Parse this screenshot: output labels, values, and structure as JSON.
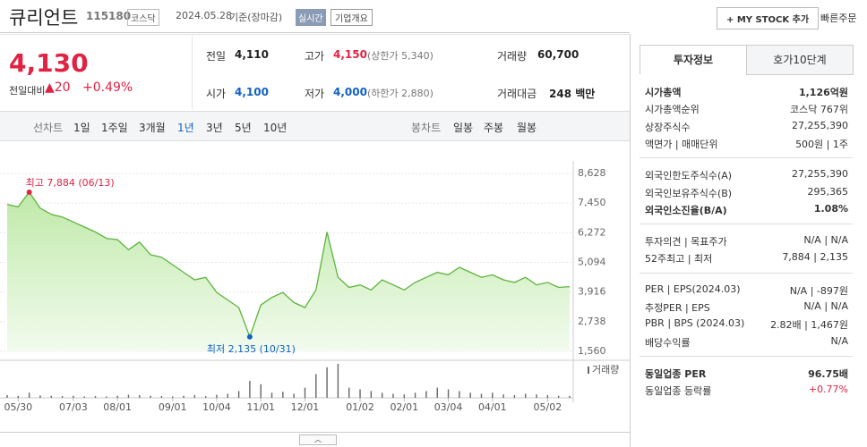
{
  "header": {
    "name": "큐리언트",
    "code": "115180",
    "market": "코스닥",
    "date": "2024.05.28",
    "basis": "기준(장마감)",
    "realtime": "실시간",
    "overview": "기업개요",
    "my_stock": "+ MY STOCK 추가",
    "quick_order": "빠른주문"
  },
  "price": {
    "current": "4,130",
    "change_label": "전일대비",
    "change": "▲20",
    "percent": "+0.49%",
    "color": "#e12343"
  },
  "stats": [
    {
      "label": "전일",
      "value": "4,110",
      "color": "#222222"
    },
    {
      "label": "고가",
      "value": "4,150",
      "extra": "(상한가 5,340)",
      "color": "#e12343"
    },
    {
      "label": "거래량",
      "value": "60,700",
      "color": "#222222"
    },
    {
      "label": "시가",
      "value": "4,100",
      "color": "#1261c4"
    },
    {
      "label": "저가",
      "value": "4,000",
      "extra": "(하한가 2,880)",
      "color": "#1261c4"
    },
    {
      "label": "거래대금",
      "value": "248 백만",
      "color": "#222222"
    }
  ],
  "tabs": {
    "line_chart": "선차트",
    "periods": [
      "1일",
      "1주일",
      "3개월",
      "1년",
      "3년",
      "5년",
      "10년"
    ],
    "candle_chart": "봉차트",
    "candles": [
      "일봉",
      "주봉",
      "월봉"
    ]
  },
  "panel": {
    "tabs": [
      "투자정보",
      "호가10단계"
    ],
    "sections": [
      [
        {
          "label": "시가총액",
          "value": "1,126억원",
          "bold": true
        },
        {
          "label": "시가총액순위",
          "value": "코스닥 767위"
        },
        {
          "label": "상장주식수",
          "value": "27,255,390"
        },
        {
          "label": "액면가 | 매매단위",
          "value": "500원 | 1주"
        }
      ],
      [
        {
          "label": "외국인한도주식수(A)",
          "value": "27,255,390"
        },
        {
          "label": "외국인보유주식수(B)",
          "value": "295,365"
        },
        {
          "label": "외국인소진율(B/A)",
          "value": "1.08%",
          "bold": true
        }
      ],
      [
        {
          "label": "투자의견 | 목표주가",
          "value": "N/A | N/A"
        },
        {
          "label": "52주최고 | 최저",
          "value": "7,884 | 2,135"
        }
      ],
      [
        {
          "label": "PER | EPS(2024.03)",
          "value": "N/A | -897원"
        },
        {
          "label": "추정PER | EPS",
          "value": "N/A | N/A"
        },
        {
          "label": "PBR | BPS (2024.03)",
          "value": "2.82배 | 1,467원"
        },
        {
          "label": "배당수익률",
          "value": "N/A"
        }
      ],
      [
        {
          "label": "동일업종 PER",
          "value": "96.75배",
          "bold": true
        },
        {
          "label": "동일업종 등락률",
          "value": "+0.77%",
          "color": "#e12343"
        }
      ]
    ]
  },
  "chart_data": {
    "type": "area",
    "categories": [
      null,
      "05/30",
      null,
      null,
      null,
      null,
      "07/03",
      null,
      null,
      null,
      "08/01",
      null,
      null,
      null,
      null,
      "09/01",
      null,
      null,
      null,
      "10/04",
      null,
      null,
      null,
      "11/01",
      null,
      null,
      null,
      "12/01",
      null,
      null,
      null,
      null,
      "01/02",
      null,
      null,
      null,
      "02/01",
      null,
      null,
      null,
      "03/04",
      null,
      null,
      null,
      "04/01",
      null,
      null,
      null,
      null,
      "05/02",
      null,
      null
    ],
    "values": [
      7400,
      7300,
      7884,
      7250,
      7000,
      6900,
      6700,
      6500,
      6300,
      6050,
      6000,
      5600,
      5900,
      5400,
      5300,
      5000,
      4700,
      4400,
      4500,
      3900,
      3600,
      3300,
      2135,
      3400,
      3700,
      3900,
      3500,
      3300,
      4000,
      6300,
      4500,
      4100,
      4200,
      4000,
      4400,
      4200,
      4000,
      4300,
      4500,
      4700,
      4600,
      4900,
      4700,
      4500,
      4600,
      4400,
      4300,
      4500,
      4200,
      4300,
      4100,
      4130
    ],
    "color": "#5cb43c",
    "ylim": [
      1560,
      8628
    ],
    "yticks": [
      {
        "value": 1560,
        "label": "1,560"
      },
      {
        "value": 2738,
        "label": "2,738"
      },
      {
        "value": 3916,
        "label": "3,916"
      },
      {
        "value": 5094,
        "label": "5,094"
      },
      {
        "value": 6272,
        "label": "6,272"
      },
      {
        "value": 7450,
        "label": "7,450"
      },
      {
        "value": 8628,
        "label": "8,628"
      }
    ],
    "high_label": "최고 7,884 (06/13)",
    "low_label": "최저 2,135 (10/31)",
    "volume": {
      "label": "거래량",
      "color": "#666666",
      "values": [
        80,
        60,
        150,
        70,
        60,
        50,
        60,
        40,
        50,
        40,
        60,
        90,
        80,
        60,
        50,
        40,
        60,
        80,
        50,
        90,
        120,
        200,
        500,
        400,
        150,
        180,
        120,
        300,
        700,
        900,
        1000,
        300,
        250,
        200,
        150,
        120,
        100,
        150,
        200,
        300,
        250,
        200,
        150,
        120,
        150,
        100,
        80,
        120,
        100,
        80,
        60,
        60
      ]
    }
  }
}
